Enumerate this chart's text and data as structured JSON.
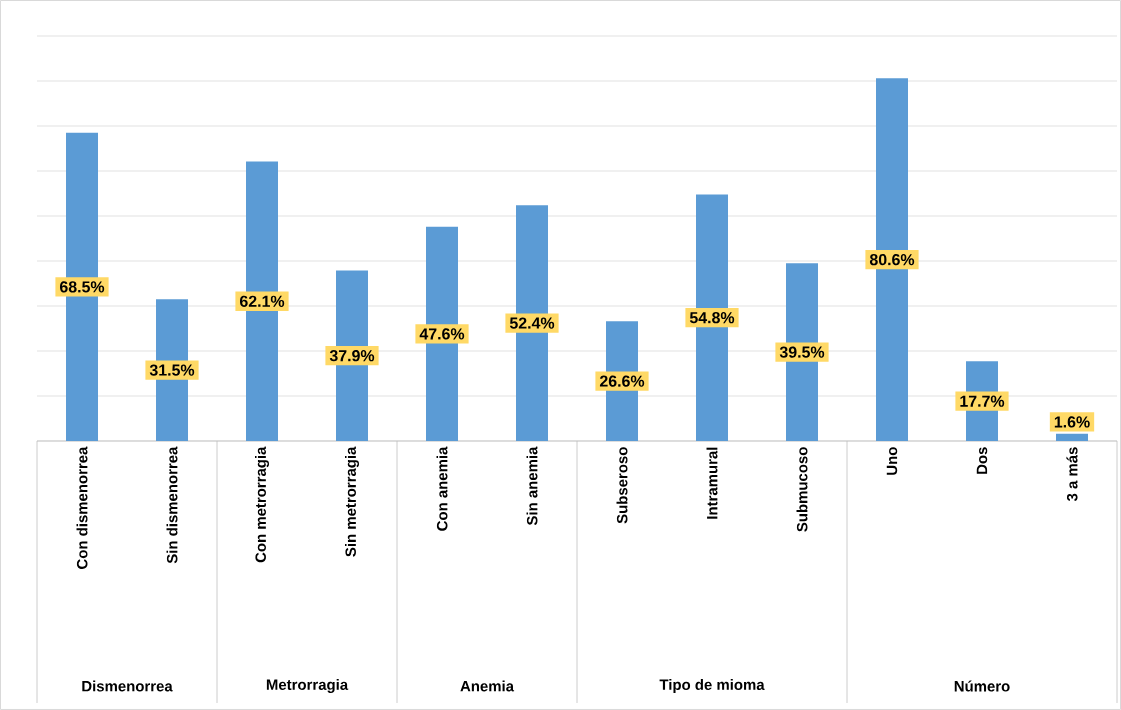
{
  "chart_data": {
    "type": "bar",
    "categories": [
      "Con dismenorrea",
      "Sin dismenorrea",
      "Con metrorragia",
      "Sin metrorragia",
      "Con anemia",
      "Sin anemia",
      "Subseroso",
      "Intramural",
      "Submucoso",
      "Uno",
      "Dos",
      "3 a más"
    ],
    "values": [
      68.5,
      31.5,
      62.1,
      37.9,
      47.6,
      52.4,
      26.6,
      54.8,
      39.5,
      80.6,
      17.7,
      1.6
    ],
    "value_labels": [
      "68.5%",
      "31.5%",
      "62.1%",
      "37.9%",
      "47.6%",
      "52.4%",
      "26.6%",
      "54.8%",
      "39.5%",
      "80.6%",
      "17.7%",
      "1.6%"
    ],
    "color": "#5b9bd5",
    "ylim": [
      0,
      90
    ],
    "yticks": [
      {
        "value": 0,
        "label": null
      },
      {
        "value": 10,
        "label": null
      },
      {
        "value": 20,
        "label": null
      },
      {
        "value": 30,
        "label": null
      },
      {
        "value": 40,
        "label": null
      },
      {
        "value": 50,
        "label": null
      },
      {
        "value": 60,
        "label": null
      },
      {
        "value": 70,
        "label": null
      },
      {
        "value": 80,
        "label": null
      },
      {
        "value": 90,
        "label": null
      }
    ],
    "tick_labels": "x",
    "grid": "y",
    "annotations": [
      "Dismenorrea",
      "Metrorragia",
      "Anemia",
      "Tipo de mioma",
      "Número"
    ]
  }
}
